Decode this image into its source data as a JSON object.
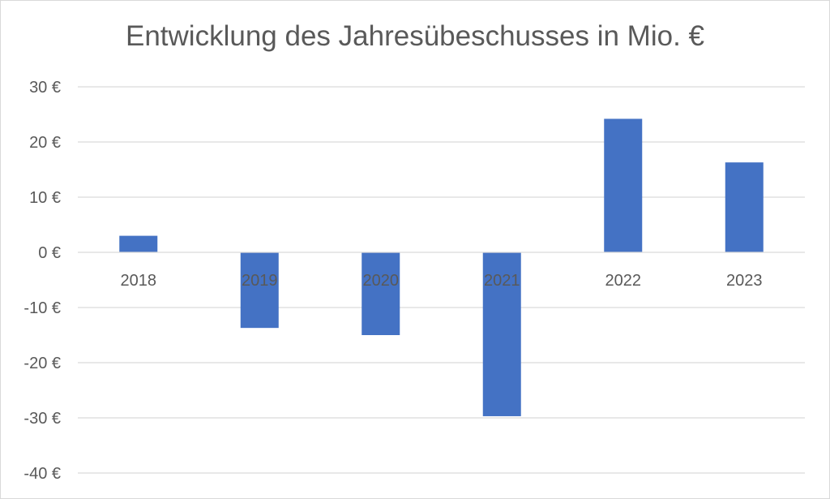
{
  "chart_data": {
    "type": "bar",
    "title": "Entwicklung des Jahresübeschusses in Mio. €",
    "categories": [
      "2018",
      "2019",
      "2020",
      "2021",
      "2022",
      "2023"
    ],
    "values": [
      3,
      -13.7,
      -15,
      -29.7,
      24.2,
      16.3
    ],
    "ylim": [
      -40,
      30
    ],
    "yticks": [
      30,
      20,
      10,
      0,
      -10,
      -20,
      -30,
      -40
    ],
    "y_tick_labels": [
      "30 €",
      "20 €",
      "10 €",
      "0 €",
      "-10 €",
      "-20 €",
      "-30 €",
      "-40 €"
    ],
    "grid": true,
    "bar_color": "#4472C4",
    "gridline_color": "#d9d9d9"
  }
}
